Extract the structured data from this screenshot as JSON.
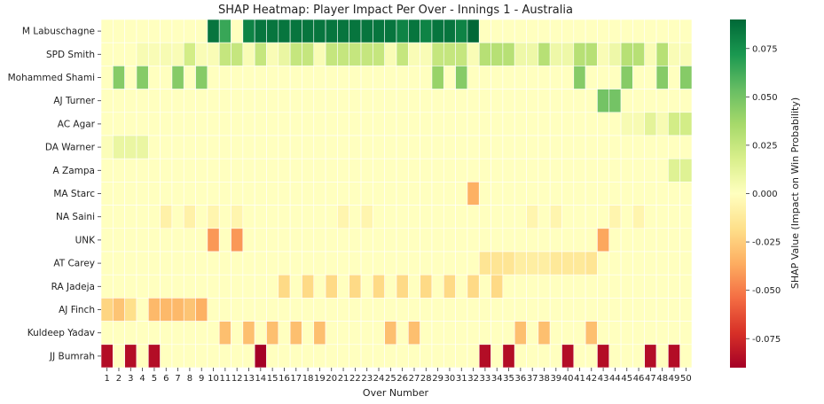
{
  "chart_data": {
    "type": "heatmap",
    "title": "SHAP Heatmap: Player Impact Per Over - Innings 1 - Australia",
    "xlabel": "Over Number",
    "colorbar_label": "SHAP Value (Impact on Win Probability)",
    "colormap": "RdYlGn",
    "vmin": -0.09,
    "vmax": 0.09,
    "colorbar_ticks": [
      "0.075",
      "0.050",
      "0.025",
      "0.000",
      "-0.025",
      "-0.050",
      "-0.075"
    ],
    "x": [
      "1",
      "2",
      "3",
      "4",
      "5",
      "6",
      "7",
      "8",
      "9",
      "10",
      "11",
      "12",
      "13",
      "14",
      "15",
      "16",
      "17",
      "18",
      "19",
      "20",
      "21",
      "22",
      "23",
      "24",
      "25",
      "26",
      "27",
      "28",
      "29",
      "30",
      "31",
      "32",
      "33",
      "34",
      "35",
      "36",
      "37",
      "38",
      "39",
      "40",
      "41",
      "42",
      "43",
      "44",
      "45",
      "46",
      "47",
      "48",
      "49",
      "50"
    ],
    "players": [
      "M Labuschagne",
      "SPD Smith",
      "Mohammed Shami",
      "AJ Turner",
      "AC Agar",
      "DA Warner",
      "A Zampa",
      "MA Starc",
      "NA Saini",
      "UNK",
      "AT Carey",
      "RA Jadeja",
      "AJ Finch",
      "Kuldeep Yadav",
      "JJ Bumrah"
    ],
    "values": [
      [
        0,
        0,
        0,
        0,
        0,
        0,
        0,
        0,
        0,
        0.085,
        0.065,
        0,
        0.08,
        0.085,
        0.085,
        0.085,
        0.085,
        0.085,
        0.085,
        0.085,
        0.085,
        0.085,
        0.085,
        0.085,
        0.085,
        0.08,
        0.085,
        0.08,
        0.085,
        0.085,
        0.08,
        0.09,
        0,
        0,
        0,
        0,
        0,
        0,
        0,
        0,
        0,
        0,
        0,
        0,
        0,
        0,
        0,
        0,
        0,
        0
      ],
      [
        0,
        0,
        0,
        0.004,
        0.003,
        0.004,
        0.003,
        0.02,
        0.003,
        0.003,
        0.025,
        0.025,
        0.003,
        0.025,
        0.003,
        0.01,
        0.025,
        0.025,
        0.003,
        0.025,
        0.025,
        0.025,
        0.025,
        0.025,
        0.003,
        0.025,
        0.003,
        0.003,
        0.025,
        0.025,
        0.025,
        0.003,
        0.03,
        0.03,
        0.03,
        0.008,
        0.008,
        0.03,
        0.008,
        0.008,
        0.03,
        0.03,
        0.003,
        0.008,
        0.03,
        0.03,
        0.003,
        0.03,
        0.003,
        0.003
      ],
      [
        0,
        0.045,
        0,
        0.045,
        0,
        0,
        0.045,
        0,
        0.045,
        0,
        0,
        0,
        0,
        0,
        0,
        0,
        0,
        0,
        0,
        0,
        0,
        0,
        0,
        0,
        0,
        0,
        0,
        0,
        0.04,
        0,
        0.045,
        0,
        0,
        0,
        0,
        0,
        0,
        0,
        0,
        0,
        0.045,
        0,
        0,
        0,
        0.045,
        0,
        0,
        0.045,
        0,
        0.045
      ],
      [
        0,
        0,
        0,
        0,
        0,
        0,
        0,
        0,
        0,
        0,
        0,
        0,
        0,
        0,
        0,
        0,
        0,
        0,
        0,
        0,
        0,
        0,
        0,
        0,
        0,
        0,
        0,
        0,
        0,
        0,
        0,
        0,
        0,
        0,
        0,
        0,
        0,
        0,
        0,
        0,
        0,
        0,
        0.05,
        0.05,
        0,
        0,
        0,
        0,
        0,
        0
      ],
      [
        0,
        0,
        0,
        0,
        0,
        0,
        0,
        0,
        0,
        0,
        0,
        0,
        0,
        0,
        0,
        0,
        0,
        0,
        0,
        0,
        0,
        0,
        0,
        0,
        0,
        0,
        0,
        0,
        0,
        0,
        0,
        0,
        0,
        0,
        0,
        0,
        0,
        0,
        0,
        0,
        0,
        0,
        0,
        0,
        0.004,
        0.004,
        0.013,
        0.004,
        0.02,
        0.02
      ],
      [
        0.002,
        0.01,
        0.01,
        0.01,
        0,
        0,
        0,
        0,
        0,
        0,
        0,
        0,
        0,
        0,
        0,
        0,
        0,
        0,
        0,
        0,
        0,
        0,
        0,
        0,
        0,
        0,
        0,
        0,
        0,
        0,
        0,
        0,
        0,
        0,
        0,
        0,
        0,
        0,
        0,
        0,
        0,
        0,
        0,
        0,
        0,
        0,
        0,
        0,
        0,
        0
      ],
      [
        0,
        0,
        0,
        0,
        0,
        0,
        0,
        0,
        0,
        0,
        0,
        0,
        0,
        0,
        0,
        0,
        0,
        0,
        0,
        0,
        0,
        0,
        0,
        0,
        0,
        0,
        0,
        0,
        0,
        0,
        0,
        0,
        0,
        0,
        0,
        0,
        0,
        0,
        0,
        0,
        0,
        0,
        0,
        0,
        0,
        0,
        0,
        0,
        0.015,
        0.015
      ],
      [
        0,
        0,
        0,
        0,
        0,
        0,
        0,
        0,
        0,
        0,
        0,
        0,
        0,
        0,
        0,
        0,
        0,
        0,
        0,
        0,
        0,
        0,
        0,
        0,
        0,
        0,
        0,
        0,
        0,
        0,
        0,
        -0.035,
        0,
        0,
        0,
        0,
        0,
        0,
        0,
        0,
        0,
        0,
        0,
        0,
        0,
        0,
        0,
        0,
        0,
        0
      ],
      [
        0,
        0,
        0,
        0,
        0,
        -0.008,
        0,
        -0.008,
        0,
        -0.006,
        0,
        -0.006,
        0,
        0,
        0,
        0,
        0,
        0,
        0,
        0,
        -0.006,
        0,
        -0.006,
        0,
        0,
        0,
        0,
        0,
        0,
        0,
        0,
        0,
        0,
        0,
        0,
        0,
        -0.006,
        0,
        -0.006,
        0,
        0,
        0,
        0,
        -0.006,
        0,
        -0.006,
        0,
        0,
        0,
        0
      ],
      [
        0,
        0,
        0,
        0,
        0,
        0,
        0,
        0,
        0,
        -0.042,
        0,
        -0.042,
        0,
        0,
        0,
        0,
        0,
        0,
        0,
        0,
        0,
        0,
        0,
        0,
        0,
        0,
        0,
        0,
        0,
        0,
        0,
        0,
        0,
        0,
        0,
        0,
        0,
        0,
        0,
        0,
        0,
        0,
        -0.038,
        0,
        0,
        0,
        0,
        0,
        0,
        0
      ],
      [
        0,
        0,
        0,
        0,
        0,
        0,
        0,
        0,
        0,
        0,
        0,
        0,
        0,
        0,
        0,
        0,
        0,
        0,
        0,
        0,
        0,
        0,
        0,
        0,
        0,
        0,
        0,
        0,
        0,
        0,
        0,
        0,
        -0.015,
        -0.015,
        -0.015,
        -0.01,
        -0.01,
        -0.01,
        -0.013,
        -0.013,
        -0.013,
        -0.015,
        0,
        0,
        0,
        0,
        0,
        0,
        0,
        0
      ],
      [
        0,
        0,
        0,
        0,
        0,
        0,
        0,
        0,
        0,
        0,
        0,
        0,
        0,
        0,
        0,
        -0.02,
        0,
        -0.02,
        0,
        -0.02,
        0,
        -0.02,
        0,
        -0.02,
        0,
        -0.02,
        0,
        -0.02,
        0,
        -0.02,
        0,
        -0.02,
        0,
        -0.02,
        0,
        0,
        0,
        0,
        0,
        0,
        0,
        0,
        0,
        0,
        0,
        0,
        0,
        0,
        0,
        0
      ],
      [
        -0.022,
        -0.028,
        -0.018,
        0,
        -0.032,
        -0.032,
        -0.032,
        -0.028,
        -0.035,
        0,
        0,
        0,
        0,
        0,
        0,
        0,
        0,
        0,
        0,
        0,
        0,
        0,
        0,
        0,
        0,
        0,
        0,
        0,
        0,
        0,
        0,
        0,
        0,
        0,
        0,
        0,
        0,
        0,
        0,
        0,
        0,
        0,
        0,
        0,
        0,
        0,
        0,
        0,
        0,
        0
      ],
      [
        0,
        0,
        0,
        0,
        0,
        0,
        0,
        0,
        0,
        0,
        -0.03,
        0,
        -0.03,
        0,
        -0.03,
        0,
        -0.03,
        0,
        -0.03,
        0,
        0,
        0,
        0,
        0,
        -0.03,
        0,
        -0.03,
        0,
        0,
        0,
        0,
        0,
        0,
        0,
        0,
        -0.03,
        0,
        -0.03,
        0,
        0,
        0,
        -0.03,
        0,
        0,
        0,
        0,
        0,
        0,
        0,
        0
      ],
      [
        -0.085,
        0,
        -0.085,
        0,
        -0.085,
        0,
        0,
        0,
        0,
        0,
        0,
        0,
        0,
        -0.09,
        0,
        0,
        0,
        0,
        0,
        0,
        0,
        0,
        0,
        0,
        0,
        0,
        0,
        0,
        0,
        0,
        0,
        0,
        -0.085,
        0,
        -0.085,
        0,
        0,
        0,
        0,
        -0.085,
        0,
        0,
        -0.085,
        0,
        0,
        0,
        -0.085,
        0,
        -0.085,
        0
      ]
    ]
  }
}
